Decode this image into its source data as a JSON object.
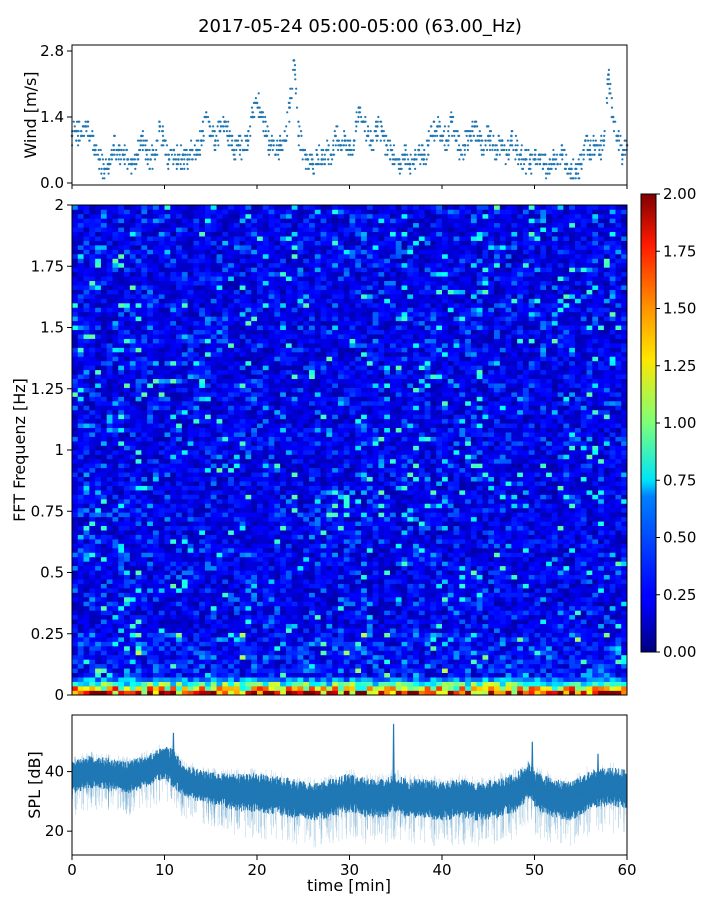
{
  "chart_data": [
    {
      "type": "scatter",
      "title": "2017-05-24 05:00-05:00 (63.00_Hz)",
      "ylabel": "Wind [m/s]",
      "xlim": [
        0,
        60
      ],
      "ylim": [
        0,
        2.8
      ],
      "yticks": [
        0.0,
        1.4,
        2.8
      ],
      "ytick_labels": [
        "0.0",
        "1.4",
        "2.8"
      ],
      "color": "#1f77b4",
      "series": [
        {
          "name": "wind",
          "x": [
            0,
            0.5,
            1,
            1.5,
            2,
            2.5,
            3,
            3.5,
            4,
            4.5,
            5,
            5.5,
            6,
            6.5,
            7,
            7.5,
            8,
            8.5,
            9,
            9.5,
            10,
            10.5,
            11,
            11.5,
            12,
            12.5,
            13,
            13.5,
            14,
            14.5,
            15,
            15.5,
            16,
            16.5,
            17,
            17.5,
            18,
            18.5,
            19,
            19.5,
            20,
            20.5,
            21,
            21.5,
            22,
            22.5,
            23,
            23.5,
            24,
            24.5,
            25,
            25.5,
            26,
            26.5,
            27,
            27.5,
            28,
            28.5,
            29,
            29.5,
            30,
            30.5,
            31,
            31.5,
            32,
            32.5,
            33,
            33.5,
            34,
            34.5,
            35,
            35.5,
            36,
            36.5,
            37,
            37.5,
            38,
            38.5,
            39,
            39.5,
            40,
            40.5,
            41,
            41.5,
            42,
            42.5,
            43,
            43.5,
            44,
            44.5,
            45,
            45.5,
            46,
            46.5,
            47,
            47.5,
            48,
            48.5,
            49,
            49.5,
            50,
            50.5,
            51,
            51.5,
            52,
            52.5,
            53,
            53.5,
            54,
            54.5,
            55,
            55.5,
            56,
            56.5,
            57,
            57.5,
            58,
            58.5,
            59,
            59.5,
            60
          ],
          "y": [
            1.0,
            1.1,
            1.0,
            1.2,
            1.0,
            0.7,
            0.5,
            0.3,
            0.4,
            0.8,
            0.7,
            0.6,
            0.5,
            0.4,
            0.6,
            1.0,
            0.7,
            0.5,
            0.6,
            1.2,
            0.9,
            0.5,
            0.7,
            0.5,
            0.6,
            0.5,
            0.7,
            0.7,
            0.9,
            1.4,
            1.0,
            0.9,
            1.1,
            1.3,
            1.0,
            0.7,
            0.8,
            0.7,
            0.9,
            1.4,
            1.7,
            1.5,
            1.0,
            0.8,
            0.6,
            0.8,
            0.9,
            1.6,
            2.6,
            1.0,
            0.7,
            0.5,
            0.4,
            0.6,
            0.5,
            0.7,
            0.6,
            1.0,
            0.8,
            0.9,
            0.8,
            0.9,
            1.6,
            1.3,
            1.0,
            0.9,
            1.2,
            1.1,
            0.8,
            0.7,
            0.5,
            0.4,
            0.6,
            0.4,
            0.5,
            0.7,
            0.5,
            0.8,
            1.0,
            1.2,
            1.0,
            0.9,
            1.3,
            0.9,
            0.7,
            0.8,
            1.0,
            1.2,
            0.9,
            0.7,
            1.0,
            0.8,
            0.7,
            0.9,
            0.6,
            1.0,
            0.7,
            0.6,
            0.5,
            0.4,
            0.5,
            0.6,
            0.4,
            0.3,
            0.5,
            0.4,
            0.6,
            0.4,
            0.3,
            0.2,
            0.4,
            0.9,
            0.6,
            0.8,
            0.6,
            0.9,
            2.3,
            1.4,
            1.0,
            0.6,
            0.8
          ]
        }
      ]
    },
    {
      "type": "heatmap",
      "ylabel": "FFT Frequenz [Hz]",
      "xlim": [
        0,
        60
      ],
      "ylim": [
        0,
        2
      ],
      "yticks": [
        0,
        0.25,
        0.5,
        0.75,
        1,
        1.25,
        1.5,
        1.75,
        2
      ],
      "ytick_labels": [
        "0",
        "0.25",
        "0.5",
        "0.75",
        "1",
        "1.25",
        "1.5",
        "1.75",
        "2"
      ],
      "colormap": "jet",
      "clim": [
        0,
        2
      ],
      "colorbar_ticks": [
        "0.00",
        "0.25",
        "0.50",
        "0.75",
        "1.00",
        "1.25",
        "1.50",
        "1.75",
        "2.00"
      ],
      "colorbar_values": [
        0,
        0.25,
        0.5,
        0.75,
        1,
        1.25,
        1.5,
        1.75,
        2
      ],
      "n_time_bins": 96,
      "n_freq_bins": 110,
      "base_level": 0.22,
      "low_freq_values": [
        1.85,
        1.4,
        0.95,
        0.6
      ],
      "description_values": "mostly 0.1-0.4 with sparse streaks up to ~0.9; first freq bins near 1.3-2.0"
    },
    {
      "type": "line",
      "ylabel": "SPL [dB]",
      "xlabel": "time [min]",
      "xlim": [
        0,
        60
      ],
      "ylim": [
        12,
        59
      ],
      "xticks": [
        0,
        10,
        20,
        30,
        40,
        50,
        60
      ],
      "xtick_labels": [
        "0",
        "10",
        "20",
        "30",
        "40",
        "50",
        "60"
      ],
      "yticks": [
        20,
        40
      ],
      "ytick_labels": [
        "20",
        "40"
      ],
      "color": "#1f77b4",
      "series": [
        {
          "name": "SPL",
          "x": [
            0,
            2,
            4,
            6,
            8,
            10,
            11,
            12,
            14,
            16,
            18,
            20,
            22,
            24,
            26,
            28,
            30,
            32,
            34,
            34.7,
            36,
            38,
            40,
            42,
            44,
            46,
            48,
            49.5,
            50,
            52,
            54,
            56,
            58,
            60
          ],
          "y": [
            38,
            40,
            39,
            38,
            40,
            43,
            41,
            37,
            35,
            34,
            33,
            33,
            32,
            31,
            30,
            31,
            33,
            31,
            31,
            33,
            31,
            31,
            30,
            31,
            30,
            31,
            33,
            37,
            34,
            31,
            30,
            34,
            35,
            34
          ],
          "spread": [
            5,
            5,
            5,
            5,
            5,
            5,
            6,
            5,
            5,
            5,
            6,
            6,
            6,
            6,
            6,
            6,
            6,
            6,
            6,
            6,
            6,
            6,
            6,
            6,
            6,
            6,
            6,
            6,
            6,
            6,
            6,
            6,
            6,
            6
          ],
          "spikes": [
            {
              "x": 10.9,
              "y": 53
            },
            {
              "x": 34.7,
              "y": 56
            },
            {
              "x": 49.7,
              "y": 50
            },
            {
              "x": 56.8,
              "y": 46
            }
          ]
        }
      ]
    }
  ]
}
